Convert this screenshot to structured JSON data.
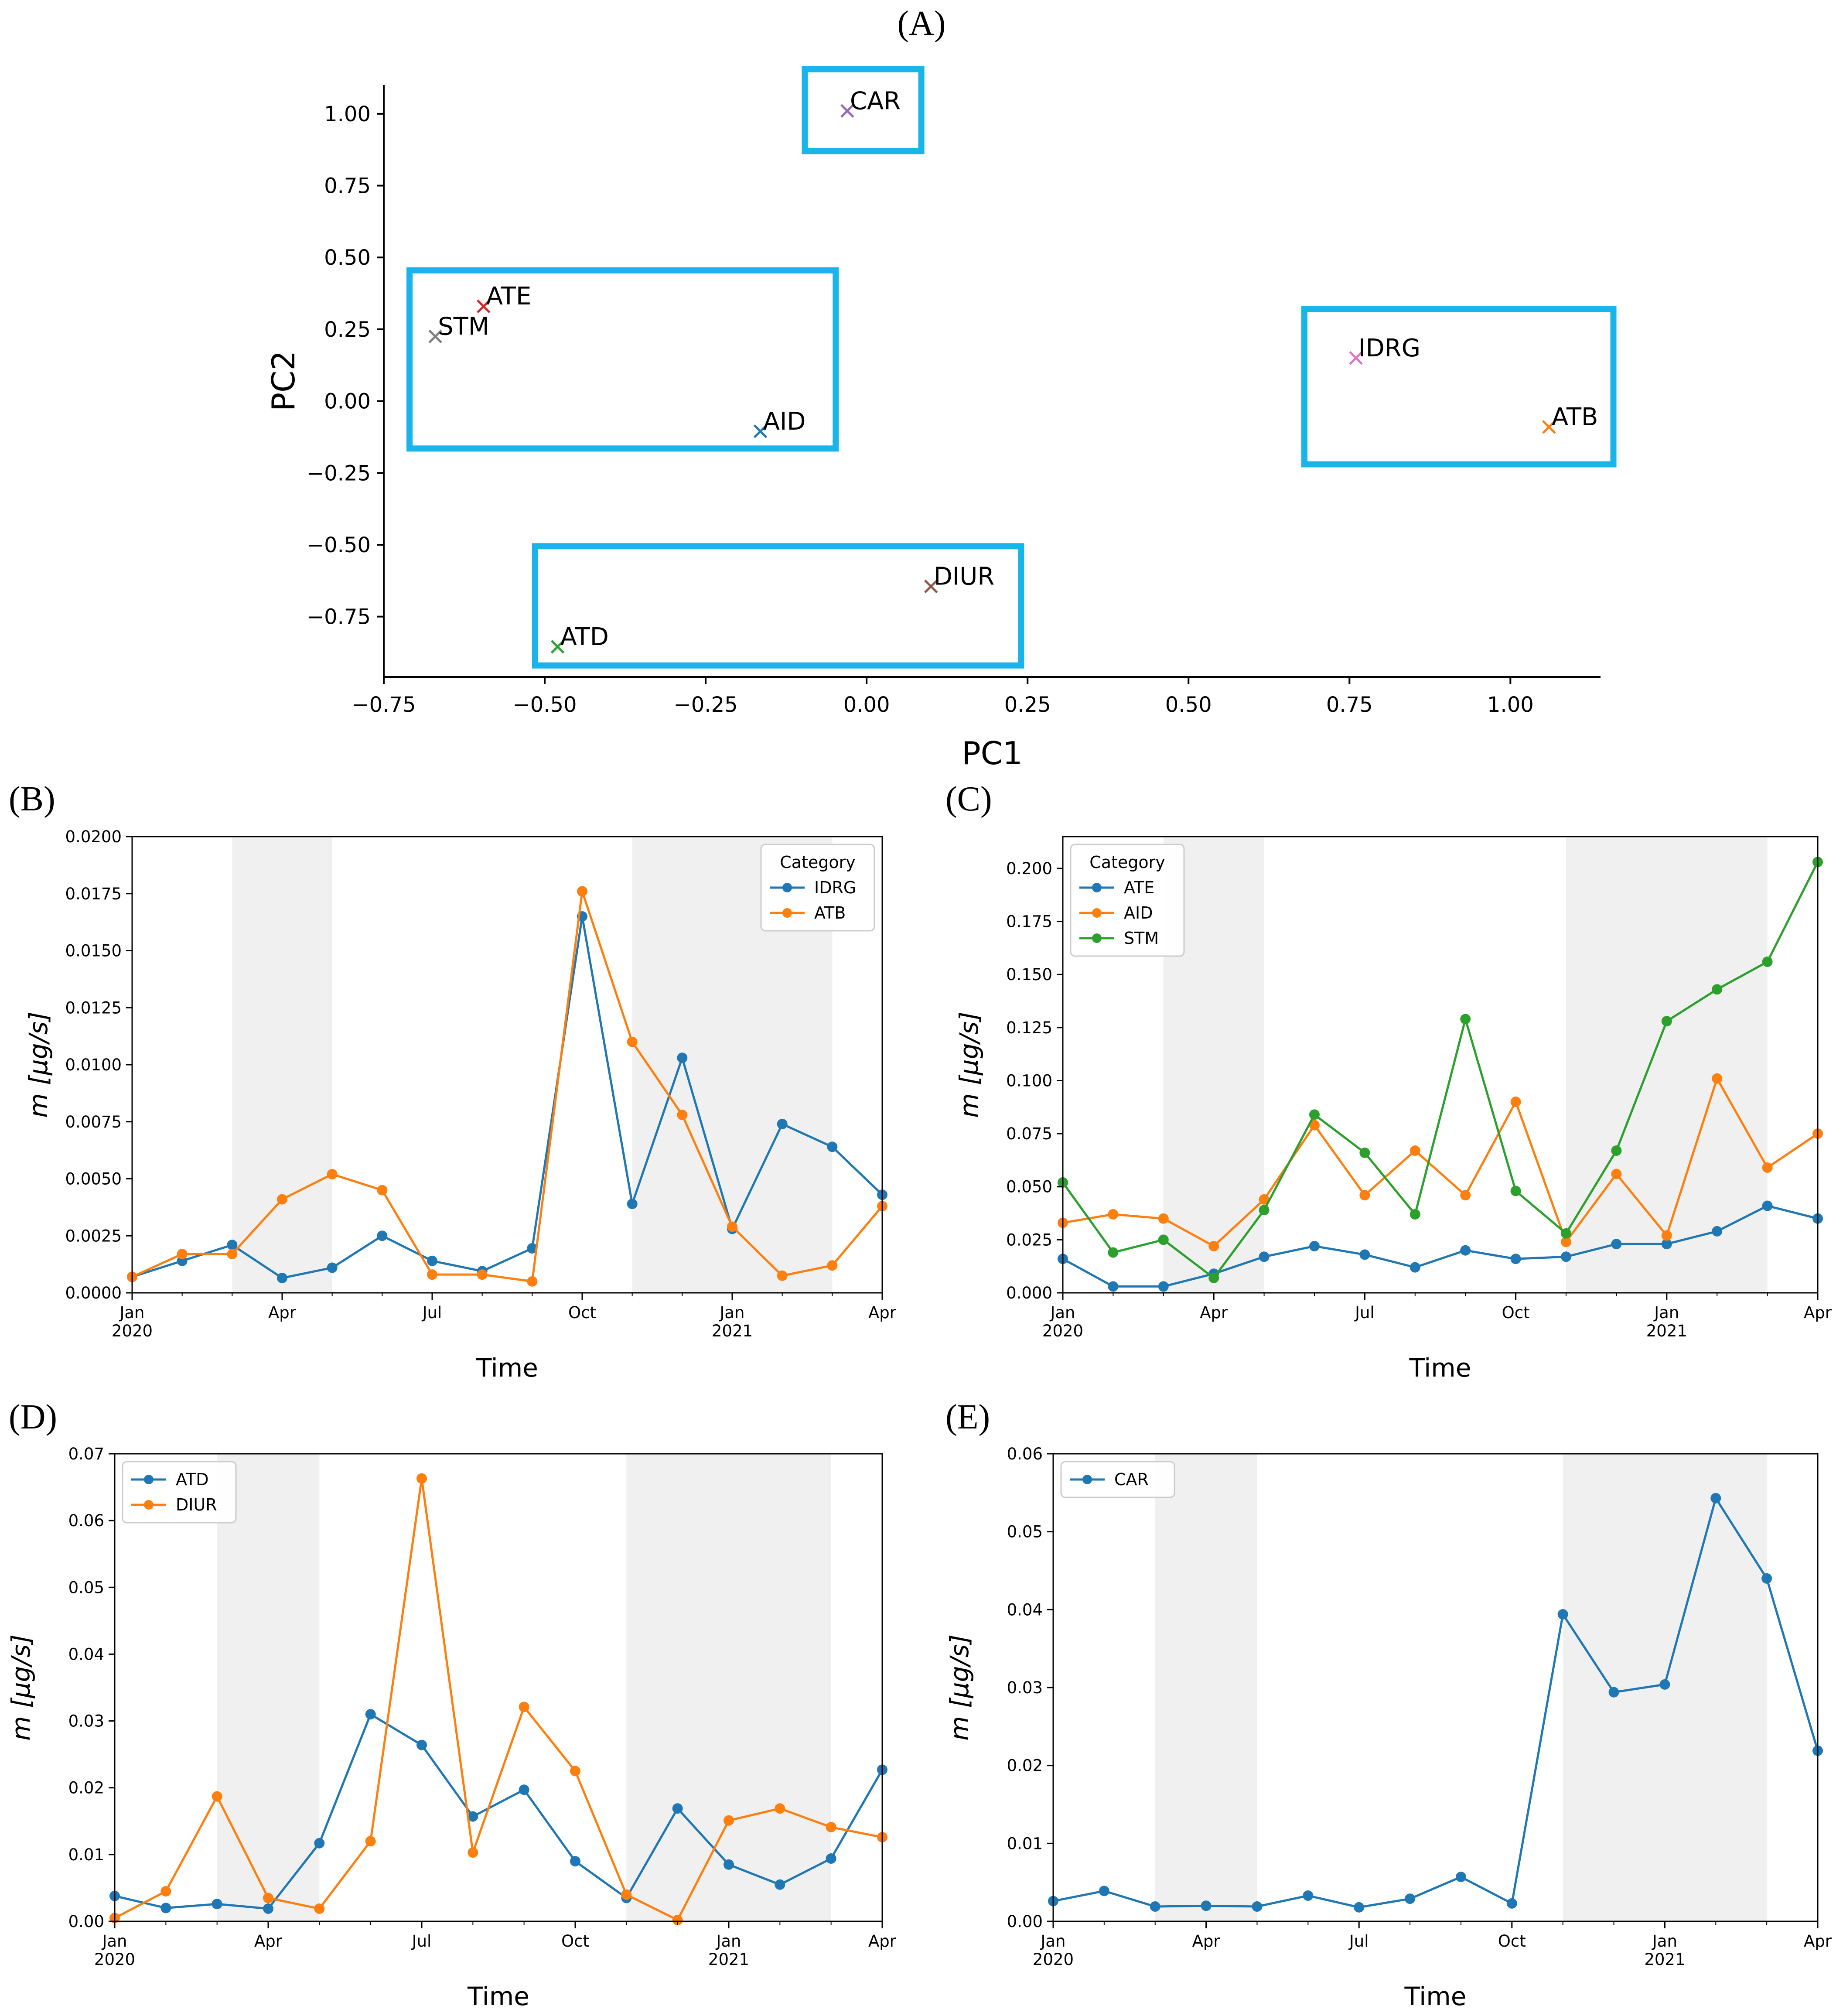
{
  "figure_labels": {
    "A": "(A)",
    "B": "(B)",
    "C": "(C)",
    "D": "(D)",
    "E": "(E)"
  },
  "colors": {
    "blue": "#1f77b4",
    "orange": "#ff7f0e",
    "green": "#2ca02c",
    "red": "#d62728",
    "purple": "#9467bd",
    "brown": "#8c564b",
    "pink": "#e377c2",
    "gray": "#7f7f7f",
    "highlight_box": "#18b4ea",
    "shade": "#f0f0f0"
  },
  "chart_data": [
    {
      "id": "A",
      "type": "scatter",
      "title": "",
      "xlabel": "PC1",
      "ylabel": "PC2",
      "xlim": [
        -0.75,
        1.14
      ],
      "ylim": [
        -0.96,
        1.1
      ],
      "xticks": [
        -0.75,
        -0.5,
        -0.25,
        0.0,
        0.25,
        0.5,
        0.75,
        1.0
      ],
      "xtick_labels": [
        "−0.75",
        "−0.50",
        "−0.25",
        "0.00",
        "0.25",
        "0.50",
        "0.75",
        "1.00"
      ],
      "yticks": [
        -0.75,
        -0.5,
        -0.25,
        0.0,
        0.25,
        0.5,
        0.75,
        1.0
      ],
      "ytick_labels": [
        "−0.75",
        "−0.50",
        "−0.25",
        "0.00",
        "0.25",
        "0.50",
        "0.75",
        "1.00"
      ],
      "points": [
        {
          "label": "CAR",
          "x": -0.03,
          "y": 1.01,
          "color": "#9467bd"
        },
        {
          "label": "ATE",
          "x": -0.595,
          "y": 0.33,
          "color": "#d62728"
        },
        {
          "label": "STM",
          "x": -0.67,
          "y": 0.225,
          "color": "#7f7f7f"
        },
        {
          "label": "AID",
          "x": -0.165,
          "y": -0.105,
          "color": "#1f77b4"
        },
        {
          "label": "IDRG",
          "x": 0.76,
          "y": 0.15,
          "color": "#e377c2"
        },
        {
          "label": "ATB",
          "x": 1.06,
          "y": -0.09,
          "color": "#ff7f0e"
        },
        {
          "label": "DIUR",
          "x": 0.1,
          "y": -0.645,
          "color": "#8c564b"
        },
        {
          "label": "ATD",
          "x": -0.48,
          "y": -0.855,
          "color": "#2ca02c"
        }
      ],
      "cluster_boxes": [
        {
          "members": [
            "CAR"
          ],
          "x0": -0.096,
          "x1": 0.085,
          "y0": 0.87,
          "y1": 1.155
        },
        {
          "members": [
            "ATE",
            "STM",
            "AID"
          ],
          "x0": -0.71,
          "x1": -0.048,
          "y0": -0.165,
          "y1": 0.455
        },
        {
          "members": [
            "IDRG",
            "ATB"
          ],
          "x0": 0.68,
          "x1": 1.16,
          "y0": -0.22,
          "y1": 0.32
        },
        {
          "members": [
            "DIUR",
            "ATD"
          ],
          "x0": -0.515,
          "x1": 0.24,
          "y0": -0.92,
          "y1": -0.505
        }
      ]
    },
    {
      "id": "B",
      "type": "line",
      "xlabel": "Time",
      "ylabel": "m [μg/s]",
      "ylim": [
        0,
        0.02
      ],
      "yticks": [
        0,
        0.0025,
        0.005,
        0.0075,
        0.01,
        0.0125,
        0.015,
        0.0175,
        0.02
      ],
      "ytick_labels": [
        "0.0000",
        "0.0025",
        "0.0050",
        "0.0075",
        "0.0100",
        "0.0125",
        "0.0150",
        "0.0175",
        "0.0200"
      ],
      "x": [
        0,
        1,
        2,
        3,
        4,
        5,
        6,
        7,
        8,
        9,
        10,
        11,
        12,
        13,
        14,
        15
      ],
      "xlim": [
        0,
        15
      ],
      "xticks": [
        0,
        3,
        6,
        9,
        12,
        15
      ],
      "xtick_labels": [
        "Jan",
        "Apr",
        "Jul",
        "Oct",
        "Jan",
        "Apr"
      ],
      "xtick_year_labels": [
        {
          "at": 0,
          "text": "2020"
        },
        {
          "at": 12,
          "text": "2021"
        }
      ],
      "shaded_spans": [
        [
          2,
          4
        ],
        [
          10,
          14
        ]
      ],
      "legend": {
        "title": "Category",
        "position": "top-right"
      },
      "series": [
        {
          "name": "IDRG",
          "color": "#1f77b4",
          "values": [
            0.0007,
            0.0014,
            0.0021,
            0.00065,
            0.0011,
            0.0025,
            0.0014,
            0.00095,
            0.00195,
            0.0165,
            0.0039,
            0.0103,
            0.0028,
            0.0074,
            0.0064,
            0.0043
          ]
        },
        {
          "name": "ATB",
          "color": "#ff7f0e",
          "values": [
            0.0007,
            0.0017,
            0.0017,
            0.0041,
            0.0052,
            0.0045,
            0.0008,
            0.0008,
            0.0005,
            0.0176,
            0.011,
            0.0078,
            0.0029,
            0.00075,
            0.0012,
            0.0038
          ]
        }
      ]
    },
    {
      "id": "C",
      "type": "line",
      "xlabel": "Time",
      "ylabel": "m [μg/s]",
      "ylim": [
        0,
        0.215
      ],
      "yticks": [
        0,
        0.025,
        0.05,
        0.075,
        0.1,
        0.125,
        0.15,
        0.175,
        0.2
      ],
      "ytick_labels": [
        "0.000",
        "0.025",
        "0.050",
        "0.075",
        "0.100",
        "0.125",
        "0.150",
        "0.175",
        "0.200"
      ],
      "x": [
        0,
        1,
        2,
        3,
        4,
        5,
        6,
        7,
        8,
        9,
        10,
        11,
        12,
        13,
        14,
        15
      ],
      "xlim": [
        0,
        15
      ],
      "xticks": [
        0,
        3,
        6,
        9,
        12,
        15
      ],
      "xtick_labels": [
        "Jan",
        "Apr",
        "Jul",
        "Oct",
        "Jan",
        "Apr"
      ],
      "xtick_year_labels": [
        {
          "at": 0,
          "text": "2020"
        },
        {
          "at": 12,
          "text": "2021"
        }
      ],
      "shaded_spans": [
        [
          2,
          4
        ],
        [
          10,
          14
        ]
      ],
      "legend": {
        "title": "Category",
        "position": "top-left"
      },
      "series": [
        {
          "name": "ATE",
          "color": "#1f77b4",
          "values": [
            0.016,
            0.003,
            0.003,
            0.009,
            0.017,
            0.022,
            0.018,
            0.012,
            0.02,
            0.016,
            0.017,
            0.023,
            0.023,
            0.029,
            0.041,
            0.035
          ]
        },
        {
          "name": "AID",
          "color": "#ff7f0e",
          "values": [
            0.033,
            0.037,
            0.035,
            0.022,
            0.044,
            0.079,
            0.046,
            0.067,
            0.046,
            0.09,
            0.024,
            0.056,
            0.027,
            0.101,
            0.059,
            0.075
          ]
        },
        {
          "name": "STM",
          "color": "#2ca02c",
          "values": [
            0.052,
            0.019,
            0.025,
            0.007,
            0.039,
            0.084,
            0.066,
            0.037,
            0.129,
            0.048,
            0.028,
            0.067,
            0.128,
            0.143,
            0.156,
            0.203
          ]
        }
      ]
    },
    {
      "id": "D",
      "type": "line",
      "xlabel": "Time",
      "ylabel": "m [μg/s]",
      "ylim": [
        0,
        0.07
      ],
      "yticks": [
        0,
        0.01,
        0.02,
        0.03,
        0.04,
        0.05,
        0.06,
        0.07
      ],
      "ytick_labels": [
        "0.00",
        "0.01",
        "0.02",
        "0.03",
        "0.04",
        "0.05",
        "0.06",
        "0.07"
      ],
      "x": [
        0,
        1,
        2,
        3,
        4,
        5,
        6,
        7,
        8,
        9,
        10,
        11,
        12,
        13,
        14,
        15
      ],
      "xlim": [
        0,
        15
      ],
      "xticks": [
        0,
        3,
        6,
        9,
        12,
        15
      ],
      "xtick_labels": [
        "Jan",
        "Apr",
        "Jul",
        "Oct",
        "Jan",
        "Apr"
      ],
      "xtick_year_labels": [
        {
          "at": 0,
          "text": "2020"
        },
        {
          "at": 12,
          "text": "2021"
        }
      ],
      "shaded_spans": [
        [
          2,
          4
        ],
        [
          10,
          14
        ]
      ],
      "legend": {
        "title": "",
        "position": "top-left"
      },
      "series": [
        {
          "name": "ATD",
          "color": "#1f77b4",
          "values": [
            0.0038,
            0.002,
            0.0026,
            0.0019,
            0.0117,
            0.031,
            0.0264,
            0.0157,
            0.0197,
            0.009,
            0.0035,
            0.0169,
            0.0085,
            0.0055,
            0.0094,
            0.0227
          ]
        },
        {
          "name": "DIUR",
          "color": "#ff7f0e",
          "values": [
            0.0005,
            0.0045,
            0.0187,
            0.0035,
            0.0019,
            0.012,
            0.0663,
            0.0103,
            0.0321,
            0.0225,
            0.004,
            0.0002,
            0.0151,
            0.0169,
            0.0141,
            0.0126
          ]
        }
      ]
    },
    {
      "id": "E",
      "type": "line",
      "xlabel": "Time",
      "ylabel": "m [μg/s]",
      "ylim": [
        0,
        0.06
      ],
      "yticks": [
        0,
        0.01,
        0.02,
        0.03,
        0.04,
        0.05,
        0.06
      ],
      "ytick_labels": [
        "0.00",
        "0.01",
        "0.02",
        "0.03",
        "0.04",
        "0.05",
        "0.06"
      ],
      "x": [
        0,
        1,
        2,
        3,
        4,
        5,
        6,
        7,
        8,
        9,
        10,
        11,
        12,
        13,
        14,
        15
      ],
      "xlim": [
        0,
        15
      ],
      "xticks": [
        0,
        3,
        6,
        9,
        12,
        15
      ],
      "xtick_labels": [
        "Jan",
        "Apr",
        "Jul",
        "Oct",
        "Jan",
        "Apr"
      ],
      "xtick_year_labels": [
        {
          "at": 0,
          "text": "2020"
        },
        {
          "at": 12,
          "text": "2021"
        }
      ],
      "shaded_spans": [
        [
          2,
          4
        ],
        [
          10,
          14
        ]
      ],
      "legend": {
        "title": "",
        "position": "top-left"
      },
      "series": [
        {
          "name": "CAR",
          "color": "#1f77b4",
          "values": [
            0.0026,
            0.0039,
            0.0019,
            0.002,
            0.0019,
            0.0033,
            0.0018,
            0.0029,
            0.0057,
            0.0023,
            0.0394,
            0.0294,
            0.0304,
            0.0543,
            0.044,
            0.0219
          ]
        }
      ]
    }
  ]
}
